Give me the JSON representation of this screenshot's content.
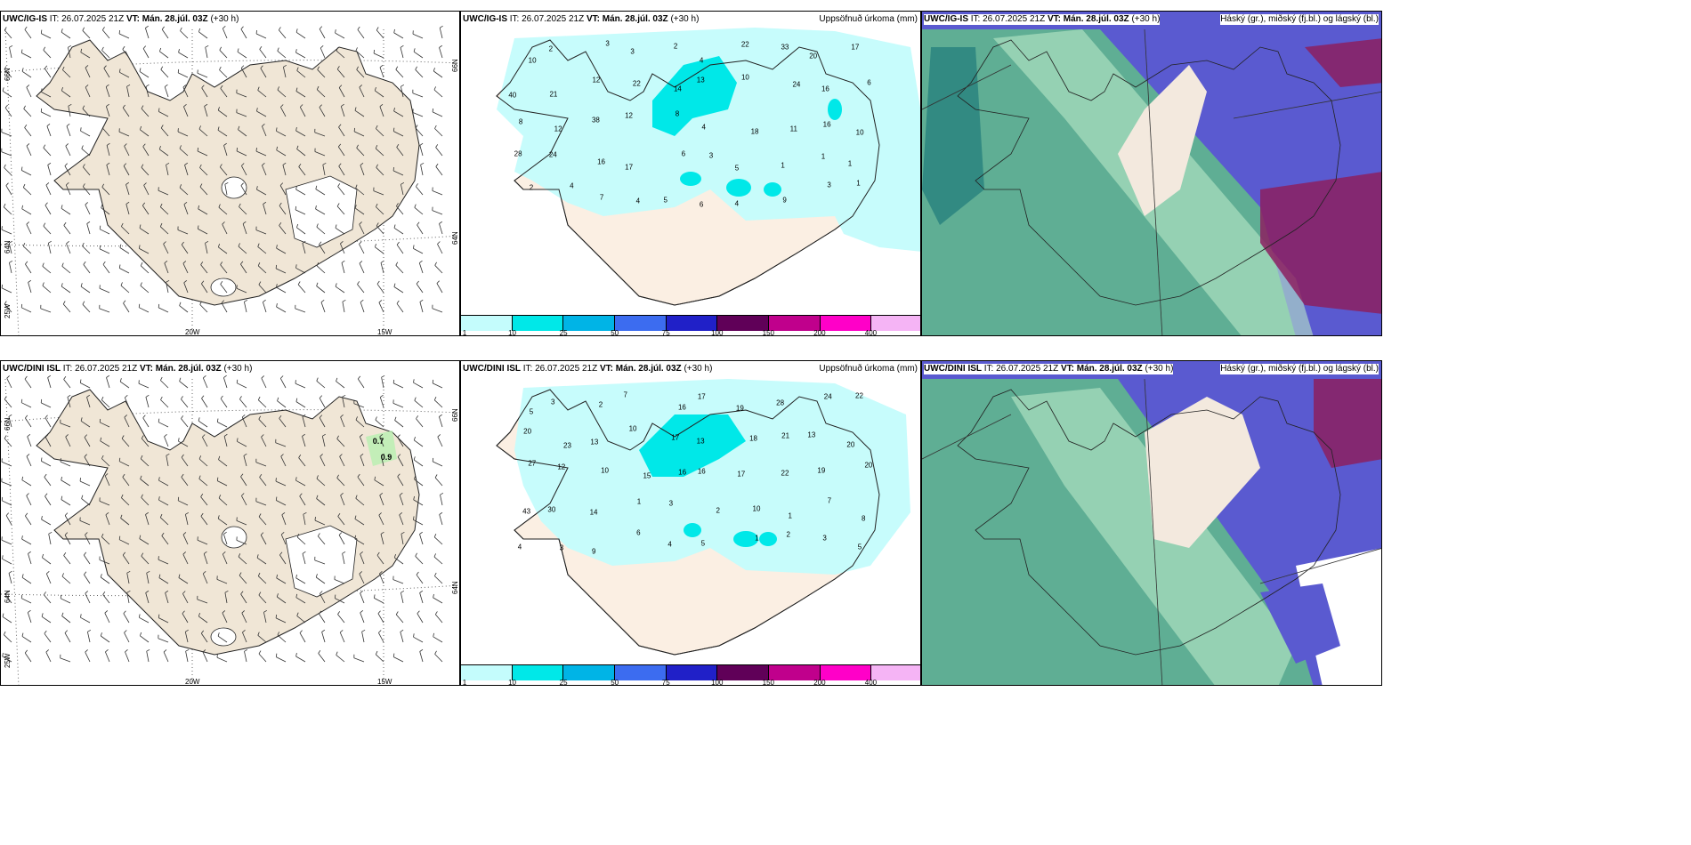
{
  "top_row": {
    "wind_panel": {
      "model": "UWC/IG-IS",
      "it_label": "IT:",
      "it_time": "26.07.2025 21Z",
      "vt_label": "VT:",
      "vt_time": "Mán. 28.júl. 03Z",
      "lead": "(+30 h)"
    },
    "precip_panel": {
      "model": "UWC/IG-IS",
      "it_label": "IT:",
      "it_time": "26.07.2025 21Z",
      "vt_label": "VT:",
      "vt_time": "Mán. 28.júl. 03Z",
      "lead": "(+30 h)",
      "title_right": "Uppsöfnuð úrkoma (mm)"
    },
    "cloud_panel": {
      "model": "UWC/IG-IS",
      "it_label": "IT:",
      "it_time": "26.07.2025 21Z",
      "vt_label": "VT:",
      "vt_time": "Mán. 28.júl. 03Z",
      "lead": "(+30 h)",
      "title_right": "Háský (gr.), miðský (fj.bl.) og lágský (bl.)"
    }
  },
  "bottom_row": {
    "wind_panel": {
      "model": "UWC/DINI ISL",
      "it_label": "IT:",
      "it_time": "26.07.2025 21Z",
      "vt_label": "VT:",
      "vt_time": "Mán. 28.júl. 03Z",
      "lead": "(+30 h)",
      "annotations": [
        "0.7",
        "0.9"
      ]
    },
    "precip_panel": {
      "model": "UWC/DINI ISL",
      "it_label": "IT:",
      "it_time": "26.07.2025 21Z",
      "vt_label": "VT:",
      "vt_time": "Mán. 28.júl. 03Z",
      "lead": "(+30 h)",
      "title_right": "Uppsöfnuð úrkoma (mm)"
    },
    "cloud_panel": {
      "model": "UWC/DINI ISL",
      "it_label": "IT:",
      "it_time": "26.07.2025 21Z",
      "vt_label": "VT:",
      "vt_time": "Mán. 28.júl. 03Z",
      "lead": "(+30 h)",
      "title_right": "Háský (gr.), miðský (fj.bl.) og lágský (bl.)"
    }
  },
  "axis_labels": {
    "lat_66": "66N",
    "lat_64": "64N",
    "lon_25": "25W",
    "lon_20": "20W",
    "lon_15": "15W"
  },
  "colorbar": {
    "ticks": [
      "1",
      "10",
      "25",
      "50",
      "75",
      "100",
      "150",
      "200",
      "400"
    ],
    "colors": [
      "#c4fcfc",
      "#00e8e8",
      "#00b4e6",
      "#3c6cf0",
      "#2020c8",
      "#600058",
      "#c0008c",
      "#ff00c8",
      "#f5b4f5"
    ]
  },
  "colors": {
    "land": "#f0e6d6",
    "land_precip": "#fbefe3",
    "precip_light": "#c4fcfc",
    "precip_mid": "#00e8e8",
    "cloud_high": "#5a5ad0",
    "cloud_mid": "#1aa890",
    "cloud_low": "#8c2060",
    "ocean_green": "#5fae94"
  },
  "precip_labels_top": [
    "10",
    "2",
    "3",
    "3",
    "2",
    "4",
    "22",
    "33",
    "20",
    "17",
    "40",
    "21",
    "12",
    "22",
    "14",
    "13",
    "10",
    "24",
    "16",
    "6",
    "8",
    "12",
    "38",
    "12",
    "8",
    "4",
    "18",
    "11",
    "16",
    "10",
    "28",
    "24",
    "16",
    "17",
    "6",
    "3",
    "5",
    "1",
    "1",
    "1",
    "2",
    "4",
    "7",
    "4",
    "5",
    "6",
    "4",
    "9",
    "3",
    "1"
  ],
  "precip_labels_bottom": [
    "5",
    "3",
    "2",
    "7",
    "16",
    "17",
    "19",
    "28",
    "24",
    "22",
    "20",
    "23",
    "13",
    "10",
    "17",
    "13",
    "18",
    "21",
    "13",
    "20",
    "27",
    "12",
    "10",
    "15",
    "16",
    "16",
    "17",
    "22",
    "19",
    "20",
    "43",
    "30",
    "14",
    "1",
    "3",
    "2",
    "10",
    "1",
    "7",
    "8",
    "4",
    "3",
    "9",
    "6",
    "4",
    "5",
    "1",
    "2",
    "3",
    "5"
  ]
}
